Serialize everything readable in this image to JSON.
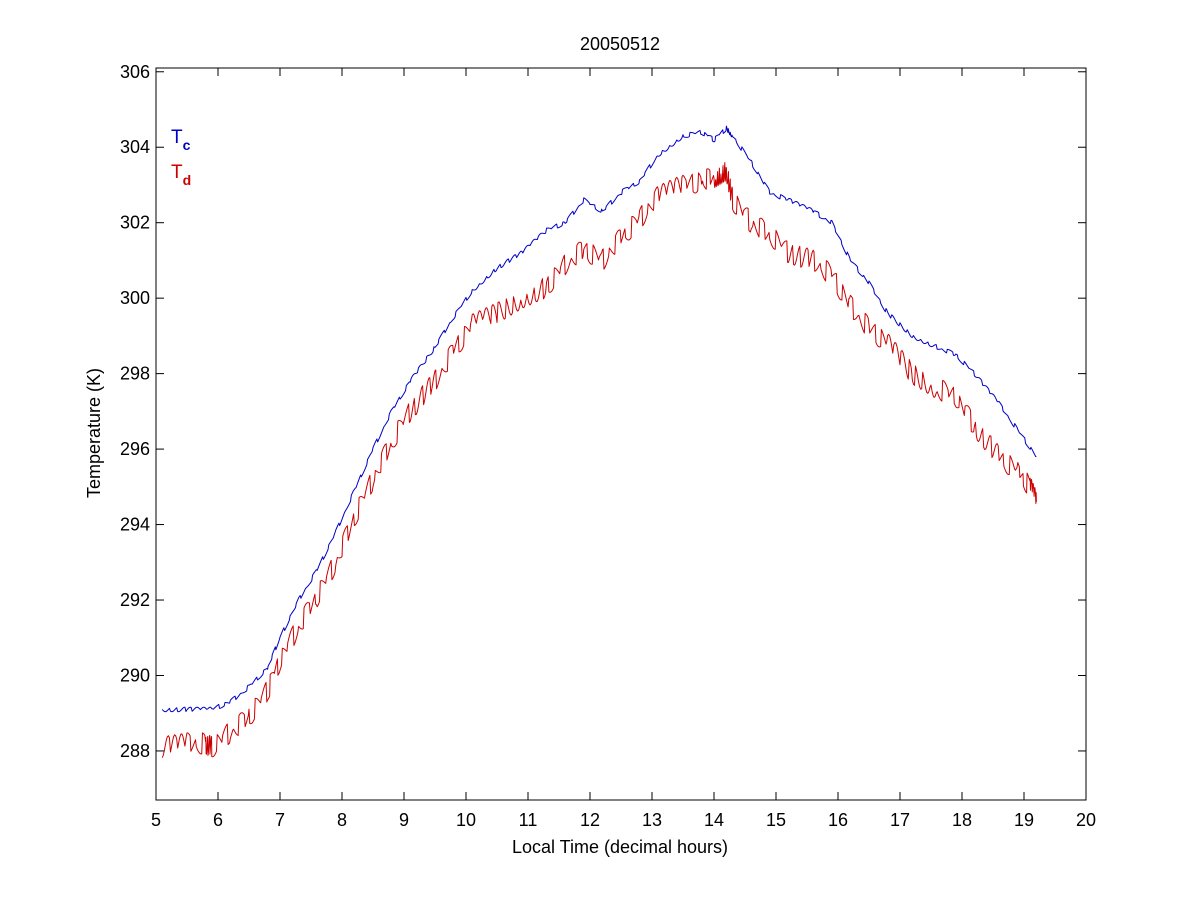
{
  "chart_data": {
    "type": "line",
    "title": "20050512",
    "xlabel": "Local Time (decimal hours)",
    "ylabel": "Temperature (K)",
    "xlim": [
      5,
      20
    ],
    "ylim": [
      286.7,
      306.1
    ],
    "xticks": [
      5,
      6,
      7,
      8,
      9,
      10,
      11,
      12,
      13,
      14,
      15,
      16,
      17,
      18,
      19,
      20
    ],
    "yticks": [
      288,
      290,
      292,
      294,
      296,
      298,
      300,
      302,
      304,
      306
    ],
    "grid": false,
    "legend_position": "top-left",
    "series": [
      {
        "name": "Tc",
        "label_main": "T",
        "label_sub": "c",
        "color": "#0000c8",
        "x": [
          5.1,
          5.5,
          5.9,
          6.2,
          6.5,
          6.8,
          7.0,
          7.3,
          7.6,
          7.9,
          8.2,
          8.5,
          8.8,
          9.1,
          9.5,
          9.8,
          10.1,
          10.5,
          10.9,
          11.3,
          11.6,
          11.9,
          12.2,
          12.5,
          12.8,
          13.1,
          13.5,
          13.8,
          14.0,
          14.2,
          14.3,
          14.6,
          14.9,
          15.2,
          15.6,
          15.9,
          16.2,
          16.5,
          16.8,
          17.2,
          17.6,
          17.9,
          18.2,
          18.6,
          18.9,
          19.2
        ],
        "y": [
          289.1,
          289.1,
          289.1,
          289.3,
          289.7,
          290.2,
          291.0,
          292.0,
          292.8,
          293.8,
          294.9,
          296.0,
          297.0,
          297.8,
          298.7,
          299.5,
          300.2,
          300.8,
          301.2,
          301.8,
          302.0,
          302.6,
          302.3,
          302.8,
          303.1,
          303.8,
          304.3,
          304.4,
          304.2,
          304.5,
          304.3,
          303.6,
          302.8,
          302.6,
          302.3,
          302.0,
          301.0,
          300.4,
          299.6,
          299.0,
          298.7,
          298.5,
          298.0,
          297.2,
          296.5,
          295.8
        ]
      },
      {
        "name": "Td",
        "label_main": "T",
        "label_sub": "d",
        "color": "#cc0000",
        "x": [
          5.1,
          5.5,
          5.8,
          5.9,
          6.2,
          6.5,
          6.8,
          7.0,
          7.3,
          7.6,
          7.9,
          8.2,
          8.5,
          8.8,
          9.1,
          9.5,
          9.8,
          10.1,
          10.5,
          10.9,
          11.3,
          11.6,
          11.9,
          12.2,
          12.5,
          12.8,
          13.1,
          13.5,
          13.8,
          14.0,
          14.1,
          14.2,
          14.3,
          14.6,
          14.9,
          15.2,
          15.6,
          15.9,
          16.2,
          16.5,
          16.8,
          17.2,
          17.6,
          17.9,
          18.2,
          18.6,
          18.9,
          19.1,
          19.2
        ],
        "y": [
          288.1,
          288.2,
          288.2,
          288.1,
          288.5,
          288.9,
          289.6,
          290.4,
          291.3,
          292.1,
          293.0,
          294.2,
          295.2,
          296.2,
          297.0,
          297.8,
          298.6,
          299.3,
          299.6,
          300.0,
          300.3,
          300.9,
          301.3,
          301.0,
          301.6,
          302.1,
          302.7,
          303.0,
          303.1,
          303.2,
          303.3,
          303.4,
          302.6,
          302.0,
          301.7,
          301.2,
          301.0,
          300.6,
          299.8,
          299.2,
          298.8,
          298.0,
          297.6,
          297.4,
          296.6,
          295.8,
          295.4,
          295.0,
          294.6
        ]
      }
    ]
  }
}
